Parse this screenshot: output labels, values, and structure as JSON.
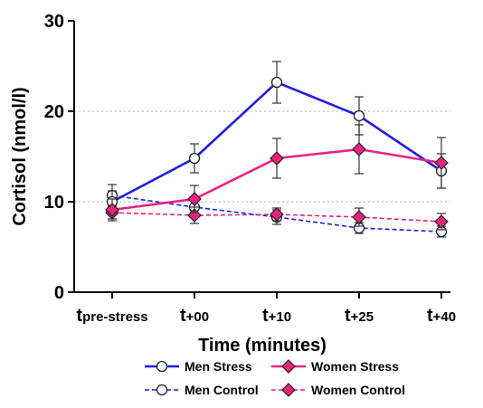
{
  "chart_data": {
    "type": "line",
    "xlabel": "Time (minutes)",
    "ylabel": "Cortisol (nmol/l)",
    "ylim": [
      0,
      30
    ],
    "yticks": [
      "0",
      "10",
      "20",
      "30"
    ],
    "grid": "horizontal dotted at 10 and 20",
    "legend_position": "bottom",
    "categories": [
      {
        "main": "t",
        "sub": "pre-stress"
      },
      {
        "main": "t",
        "sub": "+00"
      },
      {
        "main": "t",
        "sub": "+10"
      },
      {
        "main": "t",
        "sub": "+25"
      },
      {
        "main": "t",
        "sub": "+40"
      }
    ],
    "series": [
      {
        "name": "Men Stress",
        "color": "#1f1fe0",
        "dashed": false,
        "marker": "circle",
        "values": [
          10.0,
          14.8,
          23.2,
          19.5,
          13.4
        ],
        "errors": [
          1.2,
          1.6,
          2.3,
          2.1,
          1.9
        ]
      },
      {
        "name": "Women Stress",
        "color": "#e8237f",
        "dashed": false,
        "marker": "diamond",
        "values": [
          9.1,
          10.3,
          14.8,
          15.8,
          14.3
        ],
        "errors": [
          1.2,
          1.5,
          2.2,
          2.7,
          2.8
        ]
      },
      {
        "name": "Men Control",
        "color": "#1f1fe0",
        "dashed": true,
        "marker": "circle",
        "values": [
          10.7,
          9.4,
          8.3,
          7.1,
          6.7
        ],
        "errors": [
          1.2,
          0.9,
          0.8,
          0.6,
          0.6
        ]
      },
      {
        "name": "Women Control",
        "color": "#e8237f",
        "dashed": true,
        "marker": "diamond",
        "values": [
          8.8,
          8.5,
          8.6,
          8.3,
          7.8
        ],
        "errors": [
          0.7,
          0.9,
          0.7,
          1.0,
          0.9
        ]
      }
    ]
  }
}
